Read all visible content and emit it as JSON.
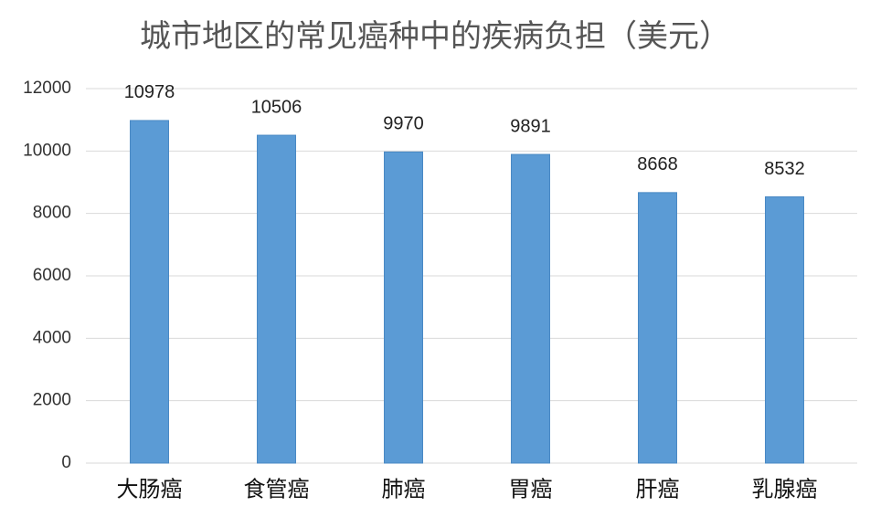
{
  "chart_data": {
    "type": "bar",
    "title": "城市地区的常见癌种中的疾病负担（美元）",
    "categories": [
      "大肠癌",
      "食管癌",
      "肺癌",
      "胃癌",
      "肝癌",
      "乳腺癌"
    ],
    "values": [
      10978,
      10506,
      9970,
      9891,
      8668,
      8532
    ],
    "color": "#5b9bd5",
    "ylim": [
      0,
      12000
    ],
    "yticks": [
      0,
      2000,
      4000,
      6000,
      8000,
      10000,
      12000
    ],
    "grid": true
  }
}
